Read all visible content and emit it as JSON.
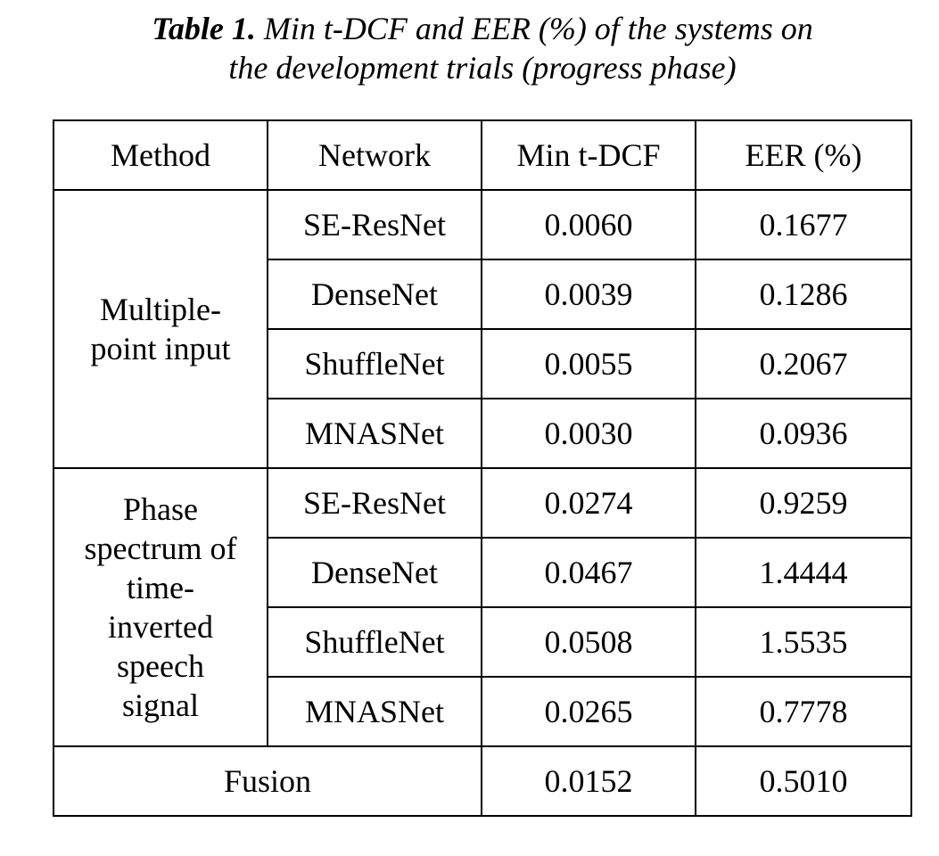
{
  "caption": {
    "label": "Table 1.",
    "line1": "Min t-DCF and EER (%) of the systems on",
    "line2": "the development trials (progress phase)"
  },
  "table": {
    "headers": [
      "Method",
      "Network",
      "Min t-DCF",
      "EER (%)"
    ],
    "groups": [
      {
        "method_lines": [
          "Multiple-",
          "point input"
        ],
        "rows": [
          {
            "network": "SE-ResNet",
            "min_tdcf": "0.0060",
            "eer": "0.1677"
          },
          {
            "network": "DenseNet",
            "min_tdcf": "0.0039",
            "eer": "0.1286"
          },
          {
            "network": "ShuffleNet",
            "min_tdcf": "0.0055",
            "eer": "0.2067"
          },
          {
            "network": "MNASNet",
            "min_tdcf": "0.0030",
            "eer": "0.0936"
          }
        ]
      },
      {
        "method_lines": [
          "Phase",
          "spectrum of",
          "time-",
          "inverted",
          "speech",
          "signal"
        ],
        "rows": [
          {
            "network": "SE-ResNet",
            "min_tdcf": "0.0274",
            "eer": "0.9259"
          },
          {
            "network": "DenseNet",
            "min_tdcf": "0.0467",
            "eer": "1.4444"
          },
          {
            "network": "ShuffleNet",
            "min_tdcf": "0.0508",
            "eer": "1.5535"
          },
          {
            "network": "MNASNet",
            "min_tdcf": "0.0265",
            "eer": "0.7778"
          }
        ]
      }
    ],
    "fusion": {
      "label": "Fusion",
      "min_tdcf": "0.0152",
      "eer": "0.5010"
    }
  }
}
